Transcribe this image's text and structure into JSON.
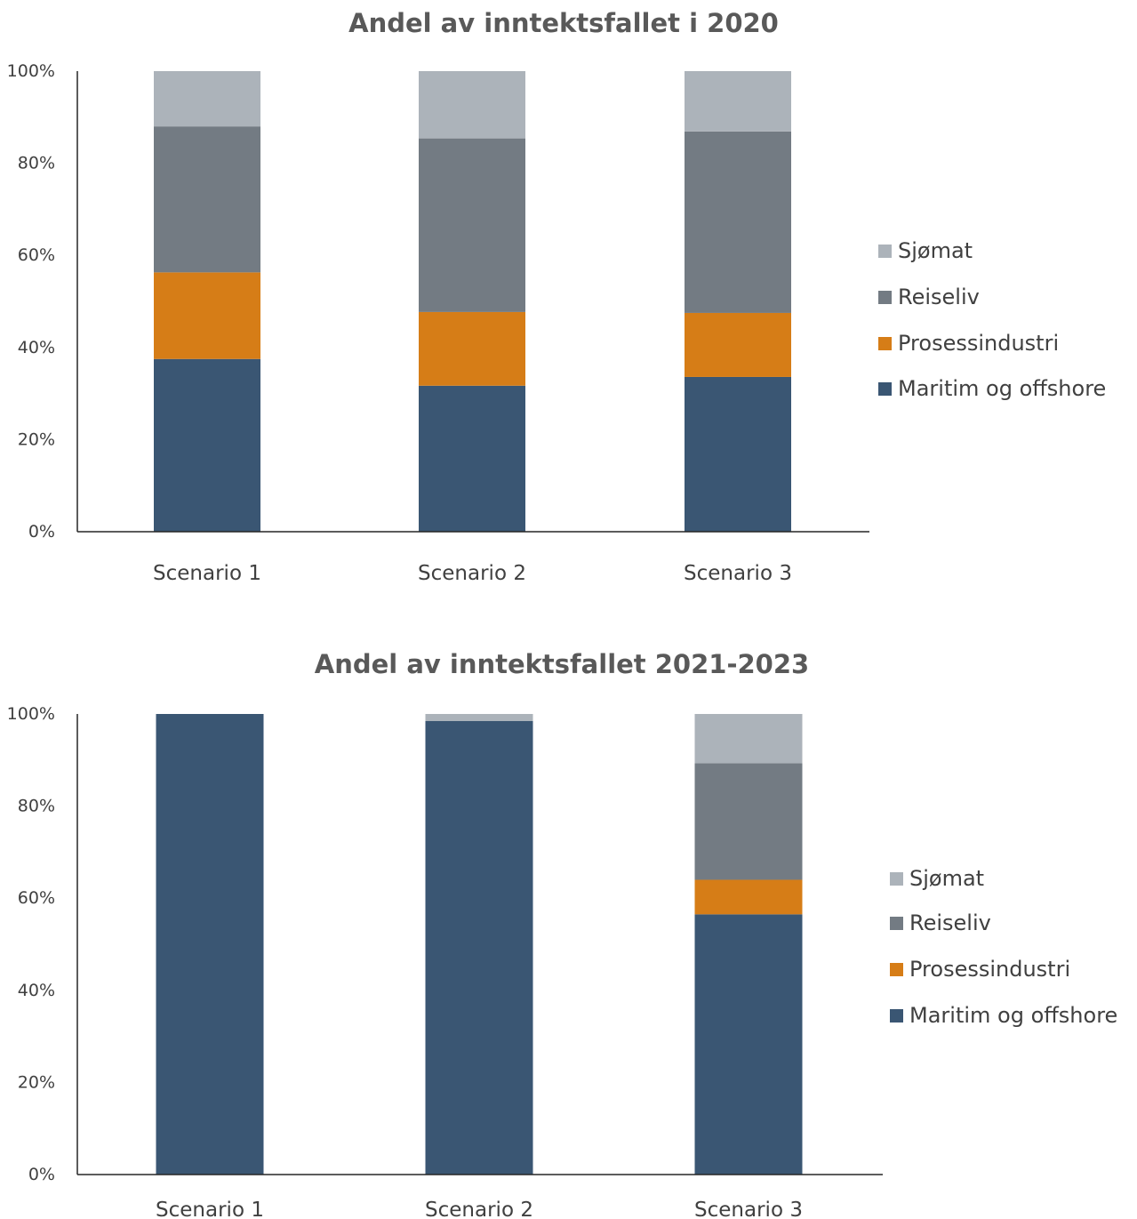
{
  "chart_data": [
    {
      "type": "bar",
      "stacked": true,
      "title": "Andel av inntektsfallet i 2020",
      "categories": [
        "Scenario 1",
        "Scenario 2",
        "Scenario 3"
      ],
      "series": [
        {
          "name": "Maritim og offshore",
          "color": "#3a5673",
          "values": [
            37.5,
            31.7,
            33.6
          ]
        },
        {
          "name": "Prosessindustri",
          "color": "#d67d17",
          "values": [
            18.8,
            16.0,
            13.9
          ]
        },
        {
          "name": "Reiseliv",
          "color": "#737b83",
          "values": [
            31.7,
            37.7,
            39.4
          ]
        },
        {
          "name": "Sjømat",
          "color": "#acb3ba",
          "values": [
            12.0,
            14.6,
            13.1
          ]
        }
      ],
      "yticks": [
        "0%",
        "20%",
        "40%",
        "60%",
        "80%",
        "100%"
      ],
      "ylim": [
        0,
        100
      ],
      "legend_position": "right",
      "grid": false
    },
    {
      "type": "bar",
      "stacked": true,
      "title": "Andel av inntektsfallet 2021-2023",
      "categories": [
        "Scenario 1",
        "Scenario 2",
        "Scenario 3"
      ],
      "series": [
        {
          "name": "Maritim og offshore",
          "color": "#3a5673",
          "values": [
            100,
            98.5,
            56.5
          ]
        },
        {
          "name": "Prosessindustri",
          "color": "#d67d17",
          "values": [
            0,
            0,
            7.5
          ]
        },
        {
          "name": "Reiseliv",
          "color": "#737b83",
          "values": [
            0,
            0,
            25.3
          ]
        },
        {
          "name": "Sjømat",
          "color": "#acb3ba",
          "values": [
            0,
            1.5,
            10.7
          ]
        }
      ],
      "yticks": [
        "0%",
        "20%",
        "40%",
        "60%",
        "80%",
        "100%"
      ],
      "ylim": [
        0,
        100
      ],
      "legend_position": "right",
      "grid": false
    }
  ]
}
